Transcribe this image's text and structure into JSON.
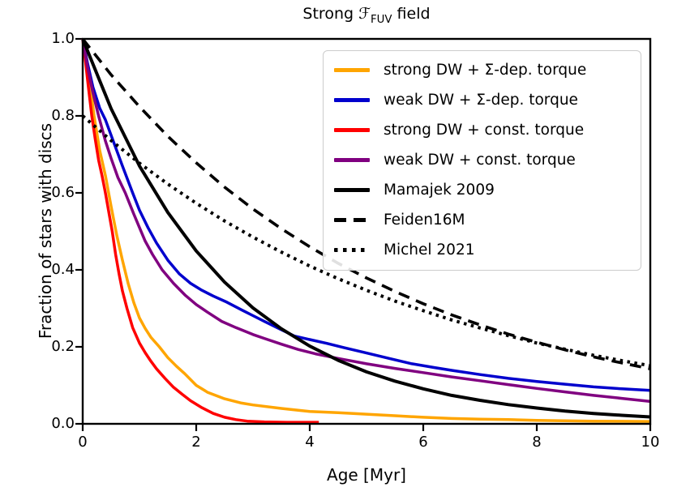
{
  "figure": {
    "title": {
      "prefix": "Strong ",
      "script_f": "ℱ",
      "sub": "FUV",
      "suffix": " field"
    },
    "xlabel": "Age [Myr]",
    "ylabel": "Fraction of stars with discs",
    "background": "#ffffff",
    "axis_color": "#000000",
    "legend_border_color": "#cccccc"
  },
  "chart_data": {
    "type": "line",
    "title": "Strong ℱ_FUV field",
    "xlabel": "Age [Myr]",
    "ylabel": "Fraction of stars with discs",
    "xlim": [
      0,
      10
    ],
    "ylim": [
      0.0,
      1.0
    ],
    "x_ticks": [
      0,
      2,
      4,
      6,
      8,
      10
    ],
    "y_ticks": [
      "1.0",
      "0.8",
      "0.6",
      "0.4",
      "0.2",
      "0.0"
    ],
    "y_tick_values": [
      1.0,
      0.8,
      0.6,
      0.4,
      0.2,
      0.0
    ],
    "grid": false,
    "legend_position": "upper right",
    "series": [
      {
        "name": "strong DW + Σ-dep. torque",
        "color": "#FFA500",
        "style": "solid",
        "width": 3.5,
        "points": [
          [
            0,
            1.0
          ],
          [
            0.05,
            0.965
          ],
          [
            0.1,
            0.92
          ],
          [
            0.2,
            0.8
          ],
          [
            0.3,
            0.71
          ],
          [
            0.4,
            0.645
          ],
          [
            0.5,
            0.565
          ],
          [
            0.6,
            0.49
          ],
          [
            0.7,
            0.425
          ],
          [
            0.8,
            0.365
          ],
          [
            0.9,
            0.315
          ],
          [
            1.0,
            0.275
          ],
          [
            1.1,
            0.248
          ],
          [
            1.2,
            0.225
          ],
          [
            1.35,
            0.2
          ],
          [
            1.5,
            0.172
          ],
          [
            1.65,
            0.15
          ],
          [
            1.8,
            0.13
          ],
          [
            2.0,
            0.1
          ],
          [
            2.2,
            0.082
          ],
          [
            2.5,
            0.065
          ],
          [
            2.8,
            0.054
          ],
          [
            3.0,
            0.049
          ],
          [
            3.5,
            0.04
          ],
          [
            4.0,
            0.032
          ],
          [
            4.5,
            0.029
          ],
          [
            5.0,
            0.025
          ],
          [
            5.5,
            0.021
          ],
          [
            6.0,
            0.017
          ],
          [
            6.5,
            0.014
          ],
          [
            7.0,
            0.012
          ],
          [
            7.5,
            0.011
          ],
          [
            8.0,
            0.009
          ],
          [
            8.5,
            0.008
          ],
          [
            9.0,
            0.007
          ],
          [
            9.5,
            0.0065
          ],
          [
            10.0,
            0.006
          ]
        ]
      },
      {
        "name": "weak DW + Σ-dep. torque",
        "color": "#0000CD",
        "style": "solid",
        "width": 3.5,
        "points": [
          [
            0,
            1.0
          ],
          [
            0.08,
            0.94
          ],
          [
            0.18,
            0.875
          ],
          [
            0.3,
            0.82
          ],
          [
            0.4,
            0.79
          ],
          [
            0.55,
            0.73
          ],
          [
            0.7,
            0.67
          ],
          [
            0.88,
            0.6
          ],
          [
            1.0,
            0.555
          ],
          [
            1.15,
            0.51
          ],
          [
            1.3,
            0.47
          ],
          [
            1.5,
            0.425
          ],
          [
            1.7,
            0.39
          ],
          [
            1.9,
            0.365
          ],
          [
            2.1,
            0.347
          ],
          [
            2.3,
            0.332
          ],
          [
            2.54,
            0.316
          ],
          [
            2.8,
            0.296
          ],
          [
            3.0,
            0.281
          ],
          [
            3.2,
            0.266
          ],
          [
            3.45,
            0.248
          ],
          [
            3.73,
            0.228
          ],
          [
            4.0,
            0.219
          ],
          [
            4.3,
            0.209
          ],
          [
            4.6,
            0.198
          ],
          [
            5.0,
            0.184
          ],
          [
            5.4,
            0.17
          ],
          [
            5.8,
            0.156
          ],
          [
            6.2,
            0.146
          ],
          [
            6.5,
            0.139
          ],
          [
            7.0,
            0.128
          ],
          [
            7.5,
            0.118
          ],
          [
            8.0,
            0.11
          ],
          [
            8.5,
            0.103
          ],
          [
            9.0,
            0.096
          ],
          [
            9.5,
            0.091
          ],
          [
            10.0,
            0.087
          ]
        ]
      },
      {
        "name": "strong DW + const. torque",
        "color": "#FF0000",
        "style": "solid",
        "width": 3.5,
        "points": [
          [
            0,
            1.0
          ],
          [
            0.05,
            0.94
          ],
          [
            0.1,
            0.875
          ],
          [
            0.16,
            0.8
          ],
          [
            0.22,
            0.74
          ],
          [
            0.28,
            0.685
          ],
          [
            0.34,
            0.645
          ],
          [
            0.4,
            0.6
          ],
          [
            0.46,
            0.55
          ],
          [
            0.52,
            0.5
          ],
          [
            0.58,
            0.44
          ],
          [
            0.64,
            0.39
          ],
          [
            0.7,
            0.345
          ],
          [
            0.78,
            0.3
          ],
          [
            0.88,
            0.25
          ],
          [
            1.0,
            0.21
          ],
          [
            1.1,
            0.185
          ],
          [
            1.2,
            0.163
          ],
          [
            1.3,
            0.143
          ],
          [
            1.45,
            0.118
          ],
          [
            1.6,
            0.095
          ],
          [
            1.75,
            0.077
          ],
          [
            1.9,
            0.06
          ],
          [
            2.1,
            0.042
          ],
          [
            2.3,
            0.027
          ],
          [
            2.5,
            0.017
          ],
          [
            2.7,
            0.011
          ],
          [
            2.9,
            0.007
          ],
          [
            3.2,
            0.005
          ],
          [
            3.6,
            0.004
          ],
          [
            4.16,
            0.004
          ]
        ]
      },
      {
        "name": "weak DW + const. torque",
        "color": "#800080",
        "style": "solid",
        "width": 3.5,
        "points": [
          [
            0,
            1.0
          ],
          [
            0.08,
            0.93
          ],
          [
            0.18,
            0.86
          ],
          [
            0.28,
            0.8
          ],
          [
            0.4,
            0.735
          ],
          [
            0.5,
            0.69
          ],
          [
            0.62,
            0.64
          ],
          [
            0.75,
            0.6
          ],
          [
            0.9,
            0.545
          ],
          [
            1.0,
            0.51
          ],
          [
            1.1,
            0.475
          ],
          [
            1.23,
            0.44
          ],
          [
            1.4,
            0.4
          ],
          [
            1.6,
            0.365
          ],
          [
            1.8,
            0.335
          ],
          [
            2.0,
            0.31
          ],
          [
            2.2,
            0.29
          ],
          [
            2.45,
            0.266
          ],
          [
            2.7,
            0.25
          ],
          [
            3.0,
            0.232
          ],
          [
            3.2,
            0.222
          ],
          [
            3.5,
            0.207
          ],
          [
            3.8,
            0.193
          ],
          [
            4.1,
            0.182
          ],
          [
            4.5,
            0.17
          ],
          [
            5.0,
            0.156
          ],
          [
            5.5,
            0.144
          ],
          [
            6.0,
            0.133
          ],
          [
            6.5,
            0.122
          ],
          [
            7.0,
            0.112
          ],
          [
            7.5,
            0.102
          ],
          [
            8.0,
            0.092
          ],
          [
            8.5,
            0.083
          ],
          [
            9.0,
            0.074
          ],
          [
            9.5,
            0.066
          ],
          [
            10.0,
            0.058
          ]
        ]
      },
      {
        "name": "Mamajek 2009",
        "color": "#000000",
        "style": "solid",
        "width": 4,
        "points": [
          [
            0,
            1.0
          ],
          [
            0.5,
            0.819
          ],
          [
            1.0,
            0.67
          ],
          [
            1.5,
            0.549
          ],
          [
            2.0,
            0.449
          ],
          [
            2.5,
            0.368
          ],
          [
            3.0,
            0.301
          ],
          [
            3.5,
            0.247
          ],
          [
            4.0,
            0.202
          ],
          [
            4.5,
            0.165
          ],
          [
            5.0,
            0.135
          ],
          [
            5.5,
            0.111
          ],
          [
            6.0,
            0.091
          ],
          [
            6.5,
            0.074
          ],
          [
            7.0,
            0.061
          ],
          [
            7.5,
            0.05
          ],
          [
            8.0,
            0.041
          ],
          [
            8.5,
            0.033
          ],
          [
            9.0,
            0.027
          ],
          [
            9.5,
            0.022
          ],
          [
            10.0,
            0.018
          ]
        ]
      },
      {
        "name": "Feiden16M",
        "color": "#000000",
        "style": "dashed",
        "width": 3.6,
        "points": [
          [
            0,
            1.0
          ],
          [
            0.5,
            0.907
          ],
          [
            1.0,
            0.824
          ],
          [
            1.5,
            0.747
          ],
          [
            2.0,
            0.678
          ],
          [
            2.5,
            0.615
          ],
          [
            3.0,
            0.558
          ],
          [
            3.5,
            0.507
          ],
          [
            4.0,
            0.46
          ],
          [
            4.5,
            0.417
          ],
          [
            5.0,
            0.379
          ],
          [
            5.5,
            0.344
          ],
          [
            6.0,
            0.312
          ],
          [
            6.5,
            0.283
          ],
          [
            7.0,
            0.257
          ],
          [
            7.5,
            0.233
          ],
          [
            8.0,
            0.212
          ],
          [
            8.5,
            0.192
          ],
          [
            9.0,
            0.174
          ],
          [
            9.5,
            0.158
          ],
          [
            10.0,
            0.143
          ]
        ]
      },
      {
        "name": "Michel 2021",
        "color": "#000000",
        "style": "dotted",
        "width": 4,
        "points": [
          [
            0,
            0.8
          ],
          [
            0.5,
            0.736
          ],
          [
            1.0,
            0.677
          ],
          [
            1.5,
            0.623
          ],
          [
            2.0,
            0.573
          ],
          [
            2.5,
            0.527
          ],
          [
            3.0,
            0.485
          ],
          [
            3.5,
            0.446
          ],
          [
            4.0,
            0.41
          ],
          [
            4.5,
            0.377
          ],
          [
            5.0,
            0.347
          ],
          [
            5.5,
            0.319
          ],
          [
            6.0,
            0.294
          ],
          [
            6.5,
            0.27
          ],
          [
            7.0,
            0.249
          ],
          [
            7.5,
            0.229
          ],
          [
            8.0,
            0.21
          ],
          [
            8.5,
            0.194
          ],
          [
            9.0,
            0.178
          ],
          [
            9.5,
            0.164
          ],
          [
            10.0,
            0.151
          ]
        ]
      }
    ]
  }
}
